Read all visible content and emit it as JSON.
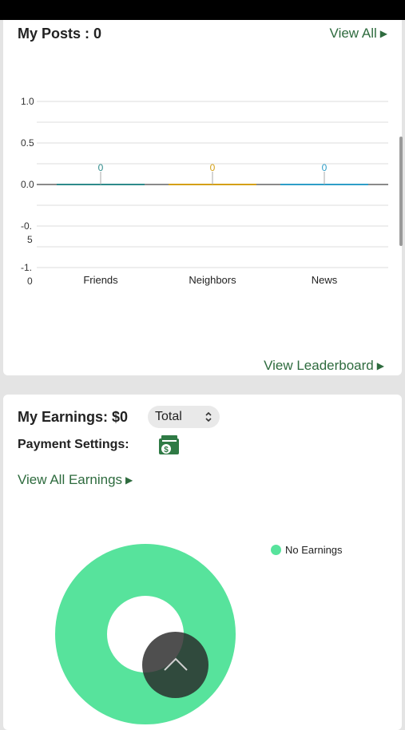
{
  "posts": {
    "title": "My Posts : 0",
    "view_all": "View All",
    "view_leaderboard": "View Leaderboard"
  },
  "chart_data": {
    "type": "bar",
    "categories": [
      "Friends",
      "Neighbors",
      "News"
    ],
    "values": [
      0,
      0,
      0
    ],
    "data_labels": [
      "0",
      "0",
      "0"
    ],
    "colors": [
      "#2e8b8b",
      "#d4a017",
      "#2e9ec8"
    ],
    "y_tick_labels": [
      "-1.\n0",
      "-0.\n5",
      "0.0",
      "0.5",
      "1.0"
    ],
    "y_ticks": [
      -1.0,
      -0.5,
      0.0,
      0.5,
      1.0
    ],
    "ylim": [
      -1.0,
      1.0
    ],
    "grid": true
  },
  "earnings": {
    "title": "My Earnings: $0",
    "period_select": "Total",
    "payment_label": "Payment Settings:",
    "view_all": "View All Earnings",
    "legend_label": "No Earnings",
    "donut_color": "#57e39c"
  }
}
